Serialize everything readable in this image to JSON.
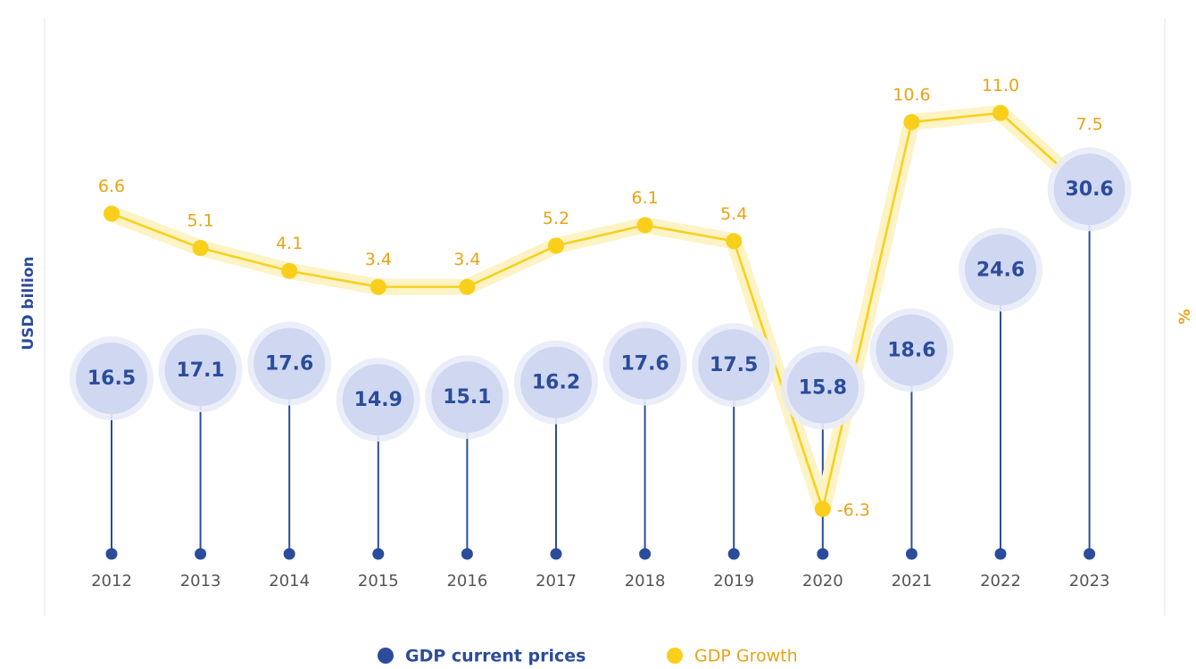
{
  "chart_data": {
    "type": "lollipop-line",
    "ylabel": "USD billion",
    "y2label": "%",
    "categories": [
      "2012",
      "2013",
      "2014",
      "2015",
      "2016",
      "2017",
      "2018",
      "2019",
      "2020",
      "2021",
      "2022",
      "2023"
    ],
    "ylim": [
      3,
      38
    ],
    "y2lim": [
      -8.5,
      12
    ],
    "series": [
      {
        "name": "GDP current prices",
        "color": "#2b4c9b",
        "values": [
          16.5,
          17.1,
          17.6,
          14.9,
          15.1,
          16.2,
          17.6,
          17.5,
          15.8,
          18.6,
          24.6,
          30.6
        ]
      },
      {
        "name": "GDP Growth",
        "color": "#f9cf1b",
        "axis": "y2",
        "values": [
          6.6,
          5.1,
          4.1,
          3.4,
          3.4,
          5.2,
          6.1,
          5.4,
          -6.3,
          10.6,
          11.0,
          7.5
        ],
        "value_labels": [
          "6.6",
          "5.1",
          "4.1",
          "3.4",
          "3.4",
          "5.2",
          "6.1",
          "5.4",
          "-6.3",
          "10.6",
          "11.0",
          "7.5"
        ]
      }
    ]
  }
}
